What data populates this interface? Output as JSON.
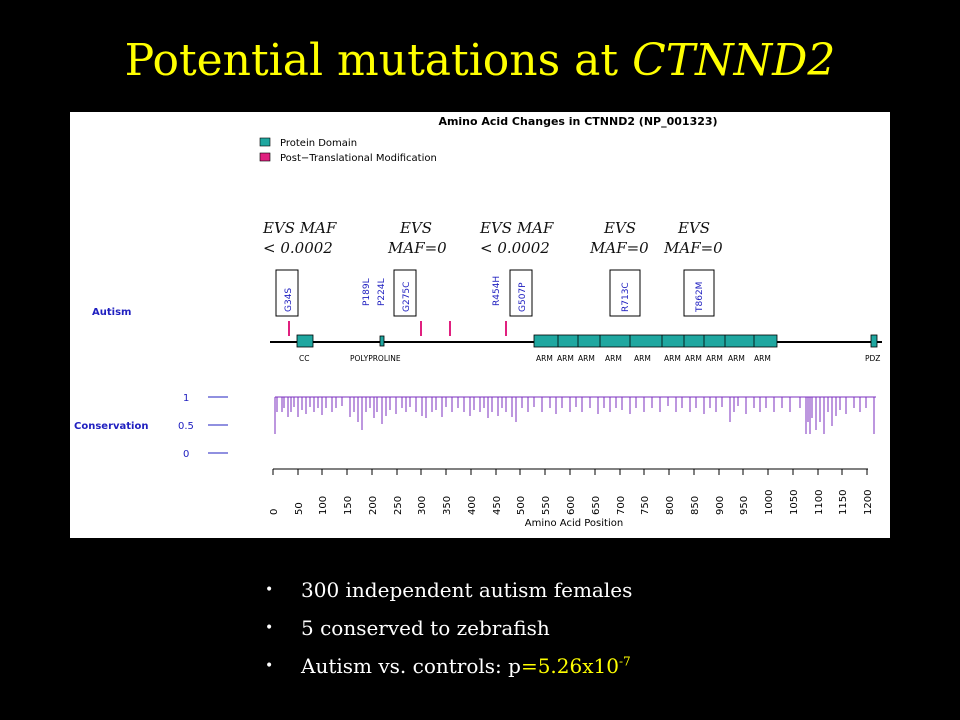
{
  "slide": {
    "title_main": "Potential mutations at ",
    "title_gene": "CTNND2"
  },
  "figure": {
    "plot_title": "Amino Acid Changes in CTNND2 (NP_001323)",
    "legend": [
      {
        "label": "Protein Domain",
        "color": "#1fa7a0"
      },
      {
        "label": "Post−Translational Modification",
        "color": "#e0207f"
      }
    ],
    "annotations": [
      {
        "line1": "EVS MAF",
        "line2": "< 0.0002"
      },
      {
        "line1": "EVS",
        "line2": "MAF=0"
      },
      {
        "line1": "EVS MAF",
        "line2": "< 0.0002"
      },
      {
        "line1": "EVS",
        "line2": "MAF=0"
      },
      {
        "line1": "EVS",
        "line2": "MAF=0"
      }
    ],
    "track_autism": "Autism",
    "track_conservation": "Conservation",
    "mutations": [
      "G34S",
      "P189L",
      "P224L",
      "G275C",
      "R454H",
      "G507P",
      "R713C",
      "T862M"
    ],
    "domains": [
      "CC",
      "POLYPROLINE",
      "ARM",
      "ARM",
      "ARM",
      "ARM",
      "ARM",
      "ARM",
      "ARM",
      "ARM",
      "ARM",
      "ARM",
      "ARM",
      "PDZ"
    ],
    "conservation_ticks": [
      "1",
      "0.5",
      "0"
    ],
    "x_ticks": [
      "0",
      "50",
      "100",
      "150",
      "200",
      "250",
      "300",
      "350",
      "400",
      "450",
      "500",
      "550",
      "600",
      "650",
      "700",
      "750",
      "800",
      "850",
      "900",
      "950",
      "1000",
      "1050",
      "1100",
      "1150",
      "1200"
    ],
    "x_label": "Amino Acid Position"
  },
  "bullets": {
    "b1": "300 independent autism females",
    "b2": "5 conserved to zebrafish",
    "b3_prefix": "Autism vs. controls: p",
    "b3_value": "=5.26x10",
    "b3_exp": "-7",
    "marker": "•"
  },
  "colors": {
    "title": "#ffff00",
    "domain": "#1fa7a0",
    "ptm": "#e0207f",
    "conservation": "#7b2fbf",
    "mutation_text": "#2020c0"
  }
}
